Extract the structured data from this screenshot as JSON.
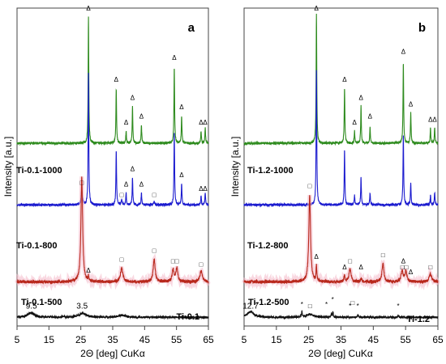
{
  "chart_data": [
    {
      "type": "line",
      "panel_letter": "a",
      "xlabel": "2Θ [deg] CuKα",
      "ylabel": "Intensity [a.u.]",
      "xlim": [
        5,
        65
      ],
      "x_ticks": [
        5,
        15,
        25,
        35,
        45,
        55,
        65
      ],
      "series": [
        {
          "name": "Ti-0.1-1000",
          "color": "#2e8b1e",
          "baseline": 0.58,
          "noise": 0.004,
          "peaks": [
            {
              "x": 27.4,
              "h": 0.41,
              "w": 0.12
            },
            {
              "x": 36.1,
              "h": 0.18,
              "w": 0.12
            },
            {
              "x": 39.2,
              "h": 0.04,
              "w": 0.12
            },
            {
              "x": 41.2,
              "h": 0.12,
              "w": 0.12
            },
            {
              "x": 44.0,
              "h": 0.06,
              "w": 0.12
            },
            {
              "x": 54.3,
              "h": 0.25,
              "w": 0.12
            },
            {
              "x": 56.6,
              "h": 0.09,
              "w": 0.12
            },
            {
              "x": 62.7,
              "h": 0.04,
              "w": 0.12
            },
            {
              "x": 64.0,
              "h": 0.05,
              "w": 0.12
            }
          ]
        },
        {
          "name": "Ti-0.1-800",
          "color": "#1c1ccf",
          "baseline": 0.38,
          "noise": 0.004,
          "peaks": [
            {
              "x": 25.3,
              "h": 0.05,
              "w": 0.22
            },
            {
              "x": 27.4,
              "h": 0.43,
              "w": 0.12
            },
            {
              "x": 36.1,
              "h": 0.18,
              "w": 0.12
            },
            {
              "x": 37.8,
              "h": 0.015,
              "w": 0.2
            },
            {
              "x": 39.2,
              "h": 0.04,
              "w": 0.12
            },
            {
              "x": 41.2,
              "h": 0.09,
              "w": 0.12
            },
            {
              "x": 44.0,
              "h": 0.04,
              "w": 0.12
            },
            {
              "x": 48.0,
              "h": 0.01,
              "w": 0.2
            },
            {
              "x": 54.3,
              "h": 0.24,
              "w": 0.12
            },
            {
              "x": 56.6,
              "h": 0.07,
              "w": 0.12
            },
            {
              "x": 62.7,
              "h": 0.03,
              "w": 0.12
            },
            {
              "x": 64.0,
              "h": 0.04,
              "w": 0.12
            }
          ]
        },
        {
          "name": "Ti-0.1-500",
          "color": "#b8281c",
          "baseline": 0.13,
          "noise": 0.005,
          "peaks": [
            {
              "x": 25.3,
              "h": 0.34,
              "w": 0.32
            },
            {
              "x": 27.4,
              "h": 0.015,
              "w": 0.15
            },
            {
              "x": 37.8,
              "h": 0.045,
              "w": 0.45
            },
            {
              "x": 48.0,
              "h": 0.075,
              "w": 0.35
            },
            {
              "x": 53.9,
              "h": 0.04,
              "w": 0.35
            },
            {
              "x": 55.1,
              "h": 0.045,
              "w": 0.35
            },
            {
              "x": 62.7,
              "h": 0.035,
              "w": 0.45
            }
          ]
        },
        {
          "name": "Ti-0.1",
          "color": "#111111",
          "baseline": 0.015,
          "noise": 0.0035,
          "peaks": [
            {
              "x": 9.4,
              "h": 0.015,
              "w": 1.2
            },
            {
              "x": 25.5,
              "h": 0.012,
              "w": 1.5
            },
            {
              "x": 38.0,
              "h": 0.006,
              "w": 1.5
            }
          ]
        }
      ],
      "annotations": [
        {
          "text": "9.5",
          "x": 9.5,
          "y": 0.043
        },
        {
          "text": "3.5",
          "x": 25.4,
          "y": 0.043
        },
        {
          "text": "Δ",
          "x": 27.4,
          "y": 1.01
        },
        {
          "text": "Δ",
          "x": 36.1,
          "y": 0.78
        },
        {
          "text": "Δ",
          "x": 39.2,
          "y": 0.64
        },
        {
          "text": "Δ",
          "x": 41.2,
          "y": 0.72
        },
        {
          "text": "Δ",
          "x": 44.0,
          "y": 0.66
        },
        {
          "text": "Δ",
          "x": 54.3,
          "y": 0.85
        },
        {
          "text": "Δ",
          "x": 56.6,
          "y": 0.69
        },
        {
          "text": "Δ",
          "x": 62.7,
          "y": 0.64
        },
        {
          "text": "Δ",
          "x": 64.0,
          "y": 0.64
        },
        {
          "text": "□",
          "x": 25.3,
          "y": 0.445
        },
        {
          "text": "□",
          "x": 37.8,
          "y": 0.405
        },
        {
          "text": "Δ",
          "x": 39.2,
          "y": 0.44
        },
        {
          "text": "Δ",
          "x": 41.2,
          "y": 0.49
        },
        {
          "text": "Δ",
          "x": 44.0,
          "y": 0.44
        },
        {
          "text": "□",
          "x": 48.0,
          "y": 0.405
        },
        {
          "text": "Δ",
          "x": 56.6,
          "y": 0.47
        },
        {
          "text": "Δ",
          "x": 62.7,
          "y": 0.425
        },
        {
          "text": "Δ",
          "x": 64.0,
          "y": 0.425
        },
        {
          "text": "Δ",
          "x": 27.4,
          "y": 0.16
        },
        {
          "text": "□",
          "x": 37.8,
          "y": 0.195
        },
        {
          "text": "□",
          "x": 48.0,
          "y": 0.225
        },
        {
          "text": "□□",
          "x": 54.5,
          "y": 0.19
        },
        {
          "text": "□",
          "x": 62.7,
          "y": 0.18
        }
      ]
    },
    {
      "type": "line",
      "panel_letter": "b",
      "xlabel": "2Θ [deg] CuKα",
      "ylabel": "Intensity [a.u.]",
      "xlim": [
        5,
        65
      ],
      "x_ticks": [
        5,
        15,
        25,
        35,
        45,
        55,
        65
      ],
      "series": [
        {
          "name": "Ti-1.2-1000",
          "color": "#2e8b1e",
          "baseline": 0.58,
          "noise": 0.004,
          "peaks": [
            {
              "x": 27.4,
              "h": 0.42,
              "w": 0.12
            },
            {
              "x": 36.1,
              "h": 0.18,
              "w": 0.12
            },
            {
              "x": 39.2,
              "h": 0.04,
              "w": 0.12
            },
            {
              "x": 41.2,
              "h": 0.12,
              "w": 0.12
            },
            {
              "x": 44.0,
              "h": 0.05,
              "w": 0.12
            },
            {
              "x": 54.3,
              "h": 0.26,
              "w": 0.12
            },
            {
              "x": 56.6,
              "h": 0.1,
              "w": 0.12
            },
            {
              "x": 62.7,
              "h": 0.05,
              "w": 0.12
            },
            {
              "x": 64.0,
              "h": 0.05,
              "w": 0.12
            }
          ]
        },
        {
          "name": "Ti-1.2-800",
          "color": "#1c1ccf",
          "baseline": 0.38,
          "noise": 0.004,
          "peaks": [
            {
              "x": 27.4,
              "h": 0.44,
              "w": 0.12
            },
            {
              "x": 36.1,
              "h": 0.18,
              "w": 0.12
            },
            {
              "x": 39.2,
              "h": 0.03,
              "w": 0.12
            },
            {
              "x": 41.2,
              "h": 0.09,
              "w": 0.12
            },
            {
              "x": 44.0,
              "h": 0.04,
              "w": 0.12
            },
            {
              "x": 54.3,
              "h": 0.23,
              "w": 0.12
            },
            {
              "x": 56.6,
              "h": 0.07,
              "w": 0.12
            },
            {
              "x": 62.7,
              "h": 0.03,
              "w": 0.12
            },
            {
              "x": 64.0,
              "h": 0.04,
              "w": 0.12
            }
          ]
        },
        {
          "name": "Ti-1.2-500",
          "color": "#b8281c",
          "baseline": 0.13,
          "noise": 0.005,
          "peaks": [
            {
              "x": 25.3,
              "h": 0.28,
              "w": 0.32
            },
            {
              "x": 27.4,
              "h": 0.05,
              "w": 0.15
            },
            {
              "x": 36.1,
              "h": 0.02,
              "w": 0.2
            },
            {
              "x": 37.8,
              "h": 0.04,
              "w": 0.4
            },
            {
              "x": 41.2,
              "h": 0.01,
              "w": 0.2
            },
            {
              "x": 48.0,
              "h": 0.06,
              "w": 0.35
            },
            {
              "x": 53.9,
              "h": 0.035,
              "w": 0.35
            },
            {
              "x": 55.1,
              "h": 0.035,
              "w": 0.35
            },
            {
              "x": 62.7,
              "h": 0.025,
              "w": 0.45
            }
          ]
        },
        {
          "name": "Ti-1.2",
          "color": "#111111",
          "baseline": 0.015,
          "noise": 0.0035,
          "peaks": [
            {
              "x": 7.0,
              "h": 0.018,
              "w": 1.2
            },
            {
              "x": 22.9,
              "h": 0.018,
              "w": 0.15
            },
            {
              "x": 25.4,
              "h": 0.01,
              "w": 1.4
            },
            {
              "x": 32.0,
              "h": 0.012,
              "w": 0.12
            },
            {
              "x": 32.5,
              "h": 0.02,
              "w": 0.12
            },
            {
              "x": 40.2,
              "h": 0.008,
              "w": 0.15
            },
            {
              "x": 52.7,
              "h": 0.006,
              "w": 0.15
            }
          ]
        }
      ],
      "annotations": [
        {
          "text": "12.7",
          "x": 7.0,
          "y": 0.043
        },
        {
          "text": "*",
          "x": 22.9,
          "y": 0.05
        },
        {
          "text": "□",
          "x": 25.4,
          "y": 0.045
        },
        {
          "text": "*",
          "x": 32.4,
          "y": 0.065
        },
        {
          "text": "*",
          "x": 30.5,
          "y": 0.05
        },
        {
          "text": "*",
          "x": 37.8,
          "y": 0.045
        },
        {
          "text": "*",
          "x": 40.2,
          "y": 0.045
        },
        {
          "text": "*",
          "x": 52.7,
          "y": 0.045
        },
        {
          "text": "Δ",
          "x": 27.4,
          "y": 1.01
        },
        {
          "text": "Δ",
          "x": 36.1,
          "y": 0.78
        },
        {
          "text": "Δ",
          "x": 39.2,
          "y": 0.64
        },
        {
          "text": "Δ",
          "x": 41.2,
          "y": 0.72
        },
        {
          "text": "Δ",
          "x": 44.0,
          "y": 0.66
        },
        {
          "text": "Δ",
          "x": 54.3,
          "y": 0.87
        },
        {
          "text": "Δ",
          "x": 56.6,
          "y": 0.7
        },
        {
          "text": "Δ",
          "x": 62.7,
          "y": 0.65
        },
        {
          "text": "Δ",
          "x": 64.0,
          "y": 0.65
        },
        {
          "text": "□",
          "x": 25.3,
          "y": 0.435
        },
        {
          "text": "Δ",
          "x": 27.4,
          "y": 0.205
        },
        {
          "text": "Δ",
          "x": 36.1,
          "y": 0.17
        },
        {
          "text": "□",
          "x": 37.8,
          "y": 0.19
        },
        {
          "text": "Δ",
          "x": 41.2,
          "y": 0.17
        },
        {
          "text": "□",
          "x": 48.0,
          "y": 0.21
        },
        {
          "text": "Δ",
          "x": 54.3,
          "y": 0.19
        },
        {
          "text": "□□",
          "x": 54.6,
          "y": 0.17
        },
        {
          "text": "Δ",
          "x": 56.6,
          "y": 0.155
        },
        {
          "text": "□",
          "x": 62.7,
          "y": 0.17
        },
        {
          "text": "□",
          "x": 38.6,
          "y": 0.055
        }
      ]
    }
  ]
}
